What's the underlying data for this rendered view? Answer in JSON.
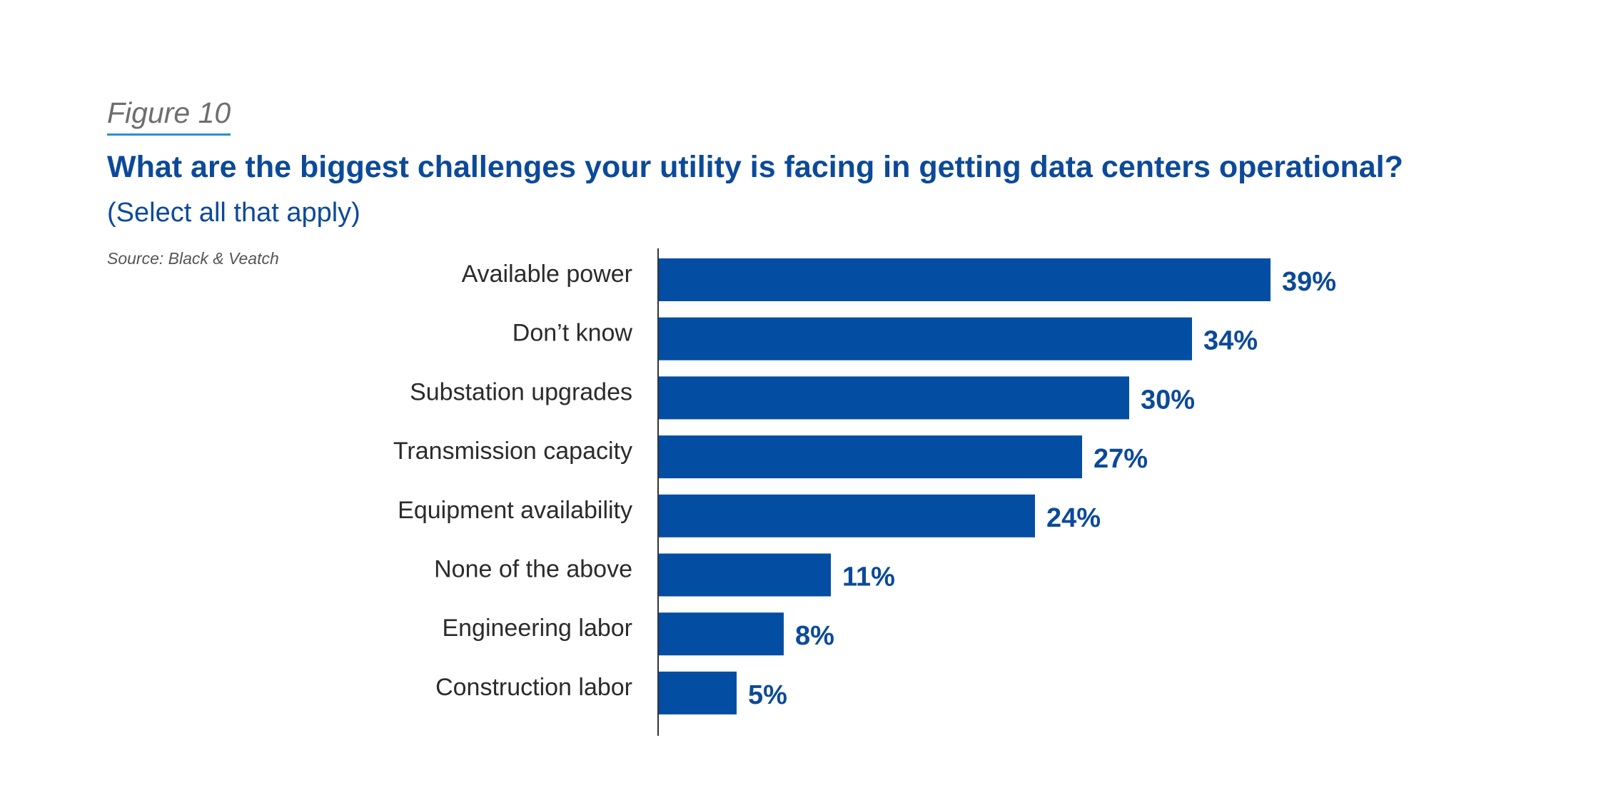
{
  "figure": {
    "label": "Figure 10",
    "source": "Source: Black & Veatch"
  },
  "colors": {
    "bar": "#034ea2",
    "title": "#0c4a99",
    "underline": "#2a8fd4",
    "axis": "#333333"
  },
  "chart_data": {
    "type": "bar",
    "orientation": "horizontal",
    "title": "What are the biggest challenges your utility is facing in getting data centers operational?",
    "subtitle": "(Select all that apply)",
    "categories": [
      "Available power",
      "Don’t know",
      "Substation upgrades",
      "Transmission capacity",
      "Equipment availability",
      "None of the above",
      "Engineering labor",
      "Construction labor"
    ],
    "values": [
      39,
      34,
      30,
      27,
      24,
      11,
      8,
      5
    ],
    "value_labels": [
      "39%",
      "34%",
      "30%",
      "27%",
      "24%",
      "11%",
      "8%",
      "5%"
    ],
    "unit": "%",
    "xlim": [
      0,
      40
    ],
    "grid": false,
    "legend": "none"
  }
}
